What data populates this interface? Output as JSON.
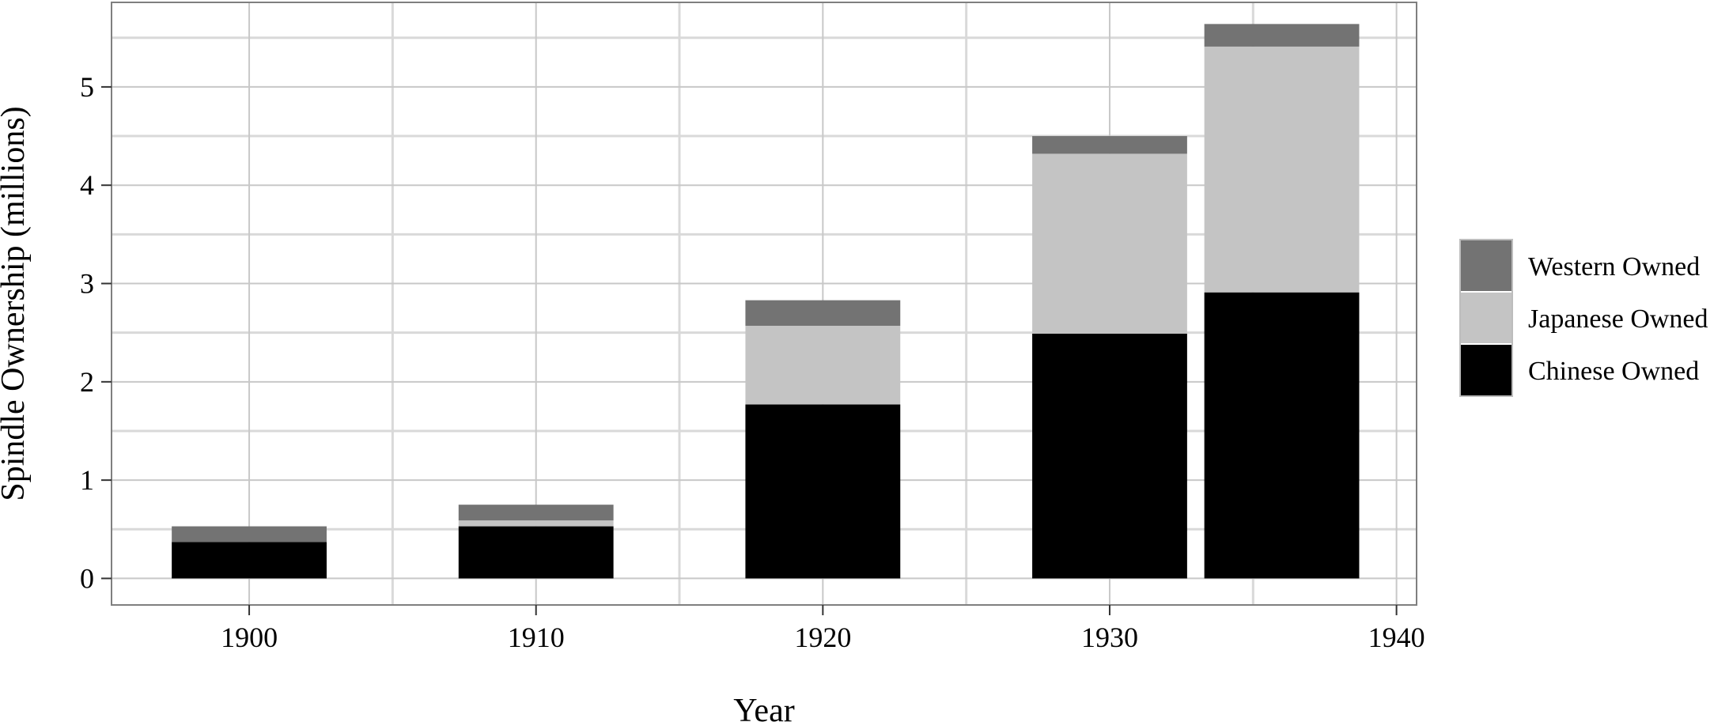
{
  "chart_data": {
    "type": "bar",
    "stacked": true,
    "xlabel": "Year",
    "ylabel": "Spindle Ownership (millions)",
    "x": [
      1900,
      1910,
      1920,
      1930,
      1936
    ],
    "series": [
      {
        "name": "Chinese Owned",
        "color": "#000000",
        "values": [
          0.37,
          0.53,
          1.77,
          2.49,
          2.91
        ]
      },
      {
        "name": "Japanese Owned",
        "color": "#c4c4c4",
        "values": [
          0.0,
          0.06,
          0.8,
          1.83,
          2.5
        ]
      },
      {
        "name": "Western Owned",
        "color": "#737373",
        "values": [
          0.16,
          0.16,
          0.26,
          0.18,
          0.23
        ]
      }
    ],
    "x_ticks": [
      "1900",
      "1910",
      "1920",
      "1930",
      "1940"
    ],
    "y_ticks": [
      "0",
      "1",
      "2",
      "3",
      "4",
      "5"
    ],
    "xlim": [
      1895.2,
      1940.7
    ],
    "ylim": [
      -0.27,
      5.86
    ],
    "grid": true,
    "legend": {
      "position": "right",
      "order": [
        "Western Owned",
        "Japanese Owned",
        "Chinese Owned"
      ]
    }
  }
}
